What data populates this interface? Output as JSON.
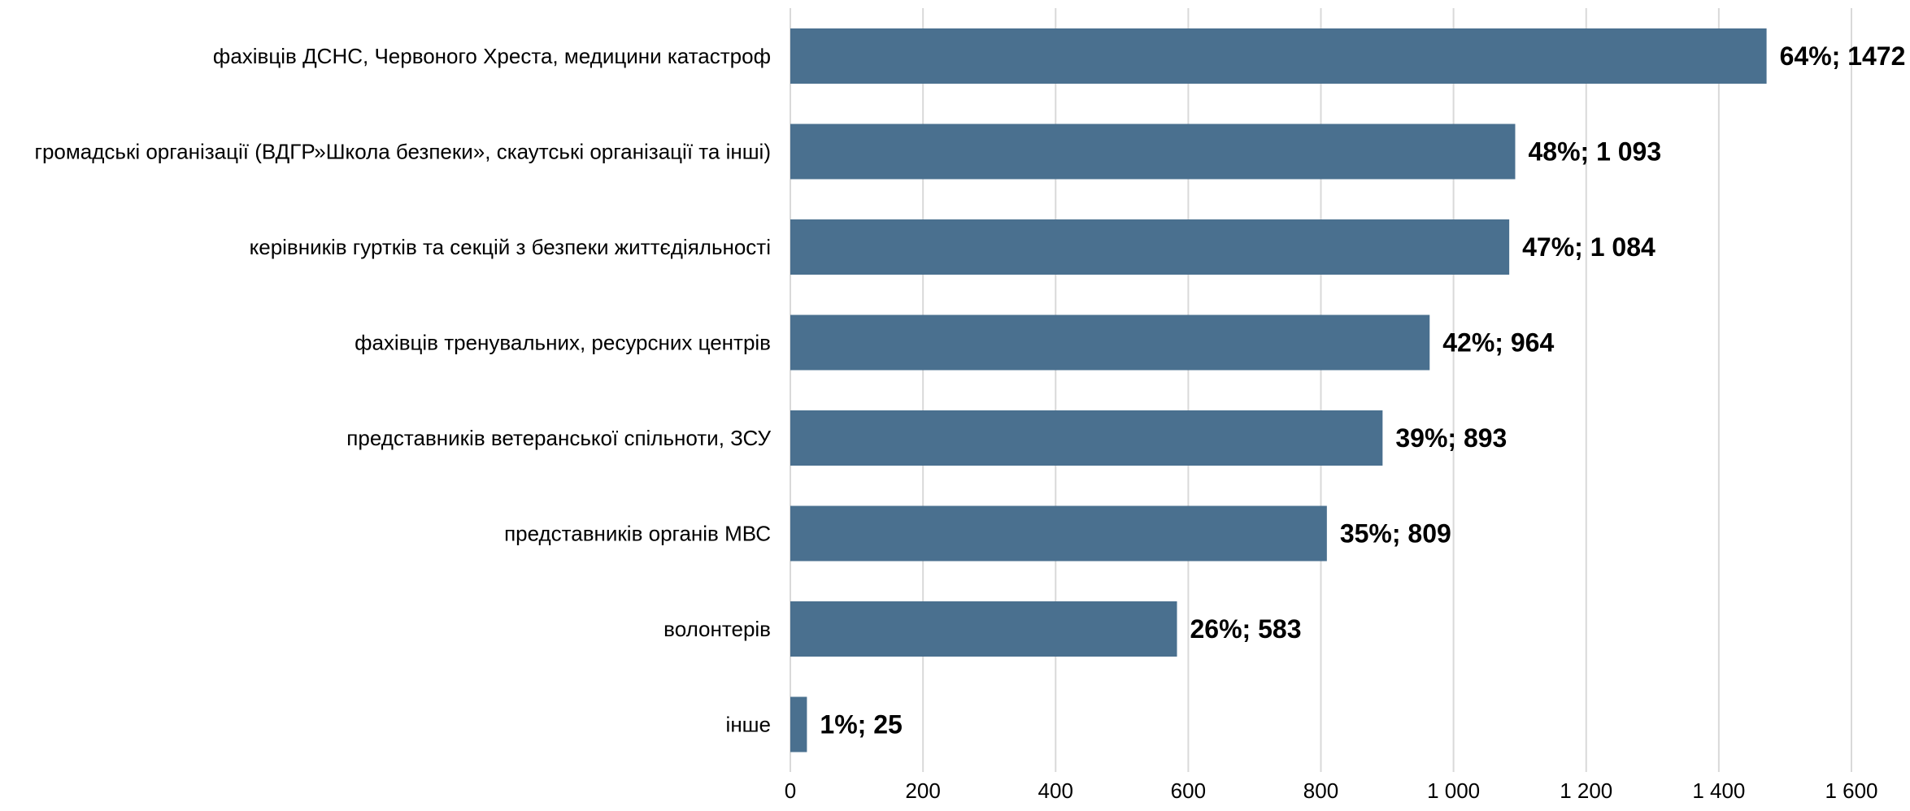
{
  "colors": {
    "bar": "#4a708f",
    "grid": "#d9d9d9",
    "text": "#000000",
    "background": "#ffffff"
  },
  "chart_data": {
    "type": "bar",
    "orientation": "horizontal",
    "categories": [
      "фахівців ДСНС, Червоного Хреста, медицини катастроф",
      "громадські організації (ВДГР»Школа безпеки», скаутські організації та інші)",
      "керівників гуртків та секцій з безпеки життєдіяльності",
      "фахівців тренувальних, ресурсних центрів",
      "представників ветеранської спільноти, ЗСУ",
      "представників органів МВС",
      "волонтерів",
      "інше"
    ],
    "values": [
      1472,
      1093,
      1084,
      964,
      893,
      809,
      583,
      25
    ],
    "data_labels": [
      "64%; 1472",
      "48%; 1 093",
      "47%; 1 084",
      "42%; 964",
      "39%; 893",
      "35%; 809",
      "26%; 583",
      "1%; 25"
    ],
    "xlim": [
      0,
      1600
    ],
    "x_ticks": [
      0,
      200,
      400,
      600,
      800,
      1000,
      1200,
      1400,
      1600
    ],
    "x_tick_labels": [
      "0",
      "200",
      "400",
      "600",
      "800",
      "1 000",
      "1 200",
      "1 400",
      "1 600"
    ],
    "grid": "vertical",
    "legend": "none",
    "title": "",
    "xlabel": "",
    "ylabel": ""
  }
}
